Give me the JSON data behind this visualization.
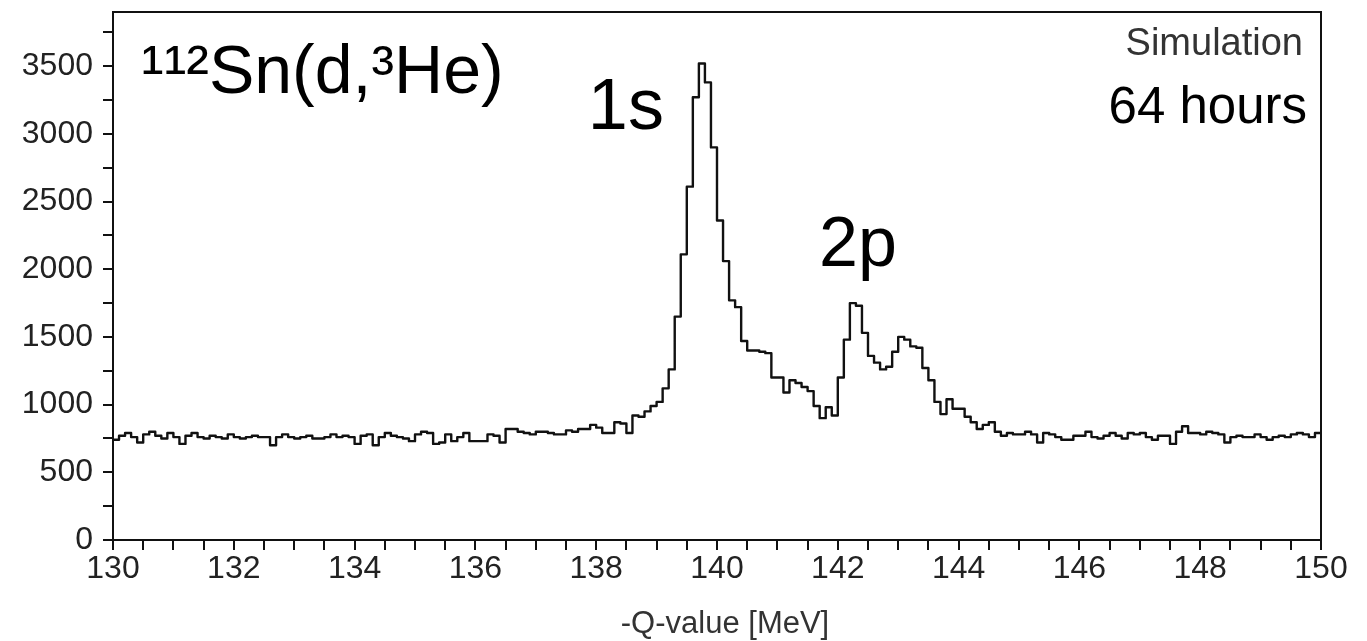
{
  "chart_data": {
    "type": "histogram",
    "xlabel": "-Q-value [MeV]",
    "annotations": [
      "¹¹²Sn(d,³He)",
      "Simulation",
      "64 hours",
      {
        "text": "1s",
        "x": 139.75,
        "y": 3520
      },
      {
        "text": "2p",
        "x": 142.25,
        "y": 1750
      }
    ],
    "color": "#111111",
    "bins": [
      130,
      130.1,
      130.2,
      130.3,
      130.4,
      130.5,
      130.6,
      130.7,
      130.8,
      130.9,
      131,
      131.1,
      131.2,
      131.3,
      131.4,
      131.5,
      131.6,
      131.7,
      131.8,
      131.9,
      132,
      132.1,
      132.2,
      132.3,
      132.4,
      132.5,
      132.6,
      132.7,
      132.8,
      132.9,
      133,
      133.1,
      133.2,
      133.3,
      133.4,
      133.5,
      133.6,
      133.7,
      133.8,
      133.9,
      134,
      134.1,
      134.2,
      134.3,
      134.4,
      134.5,
      134.6,
      134.7,
      134.8,
      134.9,
      135,
      135.1,
      135.2,
      135.3,
      135.4,
      135.5,
      135.6,
      135.7,
      135.8,
      135.9,
      136,
      136.1,
      136.2,
      136.3,
      136.4,
      136.5,
      136.6,
      136.7,
      136.8,
      136.9,
      137,
      137.1,
      137.2,
      137.3,
      137.4,
      137.5,
      137.6,
      137.7,
      137.8,
      137.9,
      138,
      138.1,
      138.2,
      138.3,
      138.4,
      138.5,
      138.6,
      138.7,
      138.8,
      138.9,
      139,
      139.1,
      139.2,
      139.3,
      139.4,
      139.5,
      139.6,
      139.7,
      139.8,
      139.9,
      140,
      140.1,
      140.2,
      140.3,
      140.4,
      140.5,
      140.6,
      140.7,
      140.8,
      140.9,
      141,
      141.1,
      141.2,
      141.3,
      141.4,
      141.5,
      141.6,
      141.7,
      141.8,
      141.9,
      142,
      142.1,
      142.2,
      142.3,
      142.4,
      142.5,
      142.6,
      142.7,
      142.8,
      142.9,
      143,
      143.1,
      143.2,
      143.3,
      143.4,
      143.5,
      143.6,
      143.7,
      143.8,
      143.9,
      144,
      144.1,
      144.2,
      144.3,
      144.4,
      144.5,
      144.6,
      144.7,
      144.8,
      144.9,
      145,
      145.1,
      145.2,
      145.3,
      145.4,
      145.5,
      145.6,
      145.7,
      145.8,
      145.9,
      146,
      146.1,
      146.2,
      146.3,
      146.4,
      146.5,
      146.6,
      146.7,
      146.8,
      146.9,
      147,
      147.1,
      147.2,
      147.3,
      147.4,
      147.5,
      147.6,
      147.7,
      147.8,
      147.9,
      148,
      148.1,
      148.2,
      148.3,
      148.4,
      148.5,
      148.6,
      148.7,
      148.8,
      148.9,
      149,
      149.1,
      149.2,
      149.3,
      149.4,
      149.5,
      149.6,
      149.7,
      149.8,
      149.9,
      150
    ],
    "values": [
      740,
      770,
      790,
      760,
      720,
      780,
      800,
      770,
      750,
      790,
      760,
      710,
      770,
      790,
      760,
      750,
      770,
      760,
      750,
      780,
      760,
      750,
      760,
      770,
      760,
      760,
      700,
      760,
      780,
      760,
      750,
      760,
      770,
      750,
      750,
      760,
      780,
      760,
      770,
      760,
      710,
      770,
      780,
      700,
      760,
      790,
      770,
      760,
      750,
      730,
      780,
      800,
      790,
      710,
      720,
      780,
      730,
      760,
      790,
      730,
      730,
      730,
      780,
      770,
      720,
      820,
      820,
      800,
      790,
      780,
      800,
      800,
      790,
      780,
      780,
      810,
      800,
      820,
      820,
      850,
      830,
      790,
      790,
      870,
      860,
      790,
      920,
      910,
      950,
      990,
      1020,
      1120,
      1260,
      1650,
      2110,
      2610,
      3270,
      3520,
      3380,
      2900,
      2360,
      2060,
      1770,
      1720,
      1470,
      1400,
      1400,
      1390,
      1380,
      1200,
      1200,
      1090,
      1180,
      1160,
      1130,
      1100,
      990,
      900,
      980,
      920,
      1200,
      1480,
      1750,
      1730,
      1530,
      1360,
      1310,
      1260,
      1280,
      1390,
      1500,
      1480,
      1430,
      1420,
      1270,
      1180,
      1020,
      930,
      1040,
      970,
      970,
      910,
      870,
      820,
      850,
      870,
      800,
      770,
      790,
      780,
      780,
      800,
      780,
      720,
      790,
      780,
      760,
      740,
      740,
      770,
      770,
      800,
      760,
      750,
      770,
      790,
      770,
      750,
      790,
      780,
      790,
      760,
      740,
      770,
      770,
      710,
      800,
      840,
      790,
      790,
      780,
      800,
      790,
      780,
      720,
      760,
      770,
      760,
      760,
      780,
      760,
      740,
      760,
      770,
      760,
      780,
      790,
      780,
      760,
      790
    ],
    "xlim": [
      130,
      150
    ],
    "xticks": [
      130,
      {
        "value": 130.5,
        "label": null
      },
      {
        "value": 131,
        "label": null
      },
      {
        "value": 131.5,
        "label": null
      },
      132,
      {
        "value": 132.5,
        "label": null
      },
      {
        "value": 133,
        "label": null
      },
      {
        "value": 133.5,
        "label": null
      },
      134,
      {
        "value": 134.5,
        "label": null
      },
      {
        "value": 135,
        "label": null
      },
      {
        "value": 135.5,
        "label": null
      },
      136,
      {
        "value": 136.5,
        "label": null
      },
      {
        "value": 137,
        "label": null
      },
      {
        "value": 137.5,
        "label": null
      },
      138,
      {
        "value": 138.5,
        "label": null
      },
      {
        "value": 139,
        "label": null
      },
      {
        "value": 139.5,
        "label": null
      },
      140,
      {
        "value": 140.5,
        "label": null
      },
      {
        "value": 141,
        "label": null
      },
      {
        "value": 141.5,
        "label": null
      },
      142,
      {
        "value": 142.5,
        "label": null
      },
      {
        "value": 143,
        "label": null
      },
      {
        "value": 143.5,
        "label": null
      },
      144,
      {
        "value": 144.5,
        "label": null
      },
      {
        "value": 145,
        "label": null
      },
      {
        "value": 145.5,
        "label": null
      },
      146,
      {
        "value": 146.5,
        "label": null
      },
      {
        "value": 147,
        "label": null
      },
      {
        "value": 147.5,
        "label": null
      },
      148,
      {
        "value": 148.5,
        "label": null
      },
      {
        "value": 149,
        "label": null
      },
      {
        "value": 149.5,
        "label": null
      },
      150
    ],
    "ylim": [
      0,
      3900
    ],
    "yticks": [
      0,
      {
        "value": 250,
        "label": null
      },
      500,
      {
        "value": 750,
        "label": null
      },
      1000,
      {
        "value": 1250,
        "label": null
      },
      1500,
      {
        "value": 1750,
        "label": null
      },
      2000,
      {
        "value": 2250,
        "label": null
      },
      2500,
      {
        "value": 2750,
        "label": null
      },
      3000,
      {
        "value": 3250,
        "label": null
      },
      3500,
      {
        "value": 3750,
        "label": null
      }
    ]
  }
}
